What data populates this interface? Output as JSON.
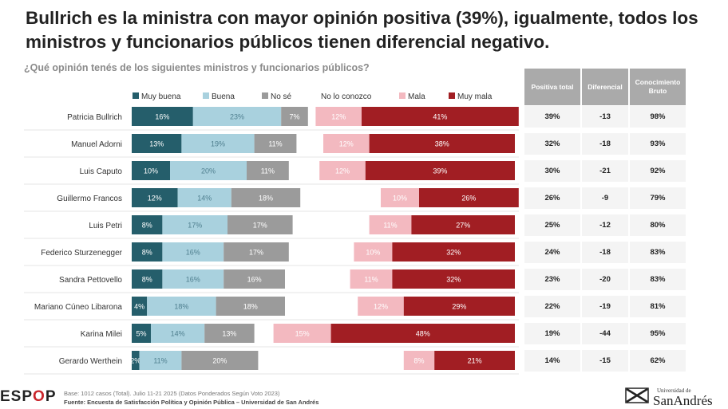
{
  "header": {
    "title": "Bullrich es la ministra con mayor opinión positiva (39%), igualmente, todos los ministros y funcionarios públicos tienen diferencial negativo.",
    "subtitle": "¿Qué opinión tenés de los siguientes ministros y funcionarios públicos?"
  },
  "colors": {
    "muy_buena": "#255e6b",
    "buena": "#a9d1de",
    "no_se": "#9b9b9b",
    "mala": "#f3b9c0",
    "muy_mala": "#a11e23"
  },
  "chart_data": {
    "type": "bar",
    "stacked": true,
    "orientation": "horizontal",
    "categories": [
      "Patricia Bullrich",
      "Manuel Adorni",
      "Luis Caputo",
      "Guillermo Francos",
      "Luis Petri",
      "Federico Sturzenegger",
      "Sandra Pettovello",
      "Mariano Cúneo Libarona",
      "Karina Milei",
      "Gerardo Werthein"
    ],
    "series": [
      {
        "name": "Muy buena",
        "values": [
          16,
          13,
          10,
          12,
          8,
          8,
          8,
          4,
          5,
          2
        ]
      },
      {
        "name": "Buena",
        "values": [
          23,
          19,
          20,
          14,
          17,
          16,
          16,
          18,
          14,
          11
        ]
      },
      {
        "name": "No sé",
        "values": [
          7,
          11,
          11,
          18,
          17,
          17,
          16,
          18,
          13,
          20
        ]
      },
      {
        "name": "No lo conozco",
        "values": [
          2,
          7,
          8,
          21,
          20,
          17,
          17,
          19,
          5,
          38
        ]
      },
      {
        "name": "Mala",
        "values": [
          12,
          12,
          12,
          10,
          11,
          10,
          11,
          12,
          15,
          8
        ]
      },
      {
        "name": "Muy mala",
        "values": [
          41,
          38,
          39,
          26,
          27,
          32,
          32,
          29,
          48,
          21
        ]
      }
    ],
    "legend_placement": "top"
  },
  "table": {
    "headers": [
      "Positiva total",
      "Diferencial",
      "Conocimiento Bruto"
    ],
    "rows": [
      [
        "39%",
        "-13",
        "98%"
      ],
      [
        "32%",
        "-18",
        "93%"
      ],
      [
        "30%",
        "-21",
        "92%"
      ],
      [
        "26%",
        "-9",
        "79%"
      ],
      [
        "25%",
        "-12",
        "80%"
      ],
      [
        "24%",
        "-18",
        "83%"
      ],
      [
        "23%",
        "-20",
        "83%"
      ],
      [
        "22%",
        "-19",
        "81%"
      ],
      [
        "19%",
        "-44",
        "95%"
      ],
      [
        "14%",
        "-15",
        "62%"
      ]
    ]
  },
  "footer": {
    "logo_a": "ESP",
    "logo_b": "O",
    "logo_c": "P",
    "base_note": "Base: 1012 casos (Total). Julio 11-21 2025 (Datos Ponderados Según Voto 2023)",
    "source_note": "Fuente: Encuesta de Satisfacción Política y Opinión Pública – Universidad de San Andrés",
    "uni_small": "Universidad de",
    "uni_big": "SanAndrés"
  }
}
